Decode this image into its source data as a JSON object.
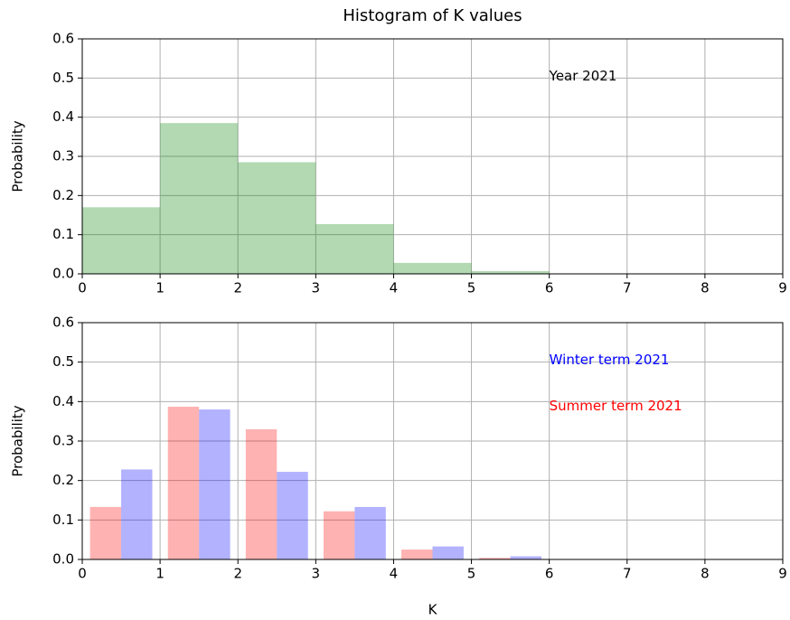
{
  "chart_data": [
    {
      "type": "histogram",
      "title": "Histogram of K values",
      "ylabel": "Probability",
      "bins": [
        0,
        1,
        2,
        3,
        4,
        5,
        6
      ],
      "series": [
        {
          "name": "Year 2021",
          "color": "green",
          "values": [
            0.17,
            0.385,
            0.285,
            0.127,
            0.028,
            0.007
          ]
        }
      ],
      "xlim": [
        0,
        9
      ],
      "xticks": [
        0,
        1,
        2,
        3,
        4,
        5,
        6,
        7,
        8,
        9
      ],
      "ylim": [
        0,
        0.6
      ],
      "yticks": [
        {
          "value": 0,
          "label": "0.0"
        },
        0.1,
        0.2,
        0.3,
        0.4,
        0.5,
        0.6
      ],
      "grid": true
    },
    {
      "type": "grouped_histogram",
      "ylabel": "Probability",
      "xlabel": "K",
      "bins": [
        0,
        1,
        2,
        3,
        4,
        5,
        6
      ],
      "series": [
        {
          "name": "Summer term 2021",
          "color": "red",
          "values": [
            0.133,
            0.387,
            0.33,
            0.122,
            0.025,
            0.004
          ]
        },
        {
          "name": "Winter term 2021",
          "color": "blue",
          "values": [
            0.228,
            0.38,
            0.222,
            0.133,
            0.033,
            0.008
          ]
        }
      ],
      "xlim": [
        0,
        9
      ],
      "xticks": [
        0,
        1,
        2,
        3,
        4,
        5,
        6,
        7,
        8,
        9
      ],
      "ylim": [
        0,
        0.6
      ],
      "yticks": [
        {
          "value": 0,
          "label": "0.0"
        },
        0.1,
        0.2,
        0.3,
        0.4,
        0.5,
        0.6
      ],
      "grid": true
    }
  ]
}
